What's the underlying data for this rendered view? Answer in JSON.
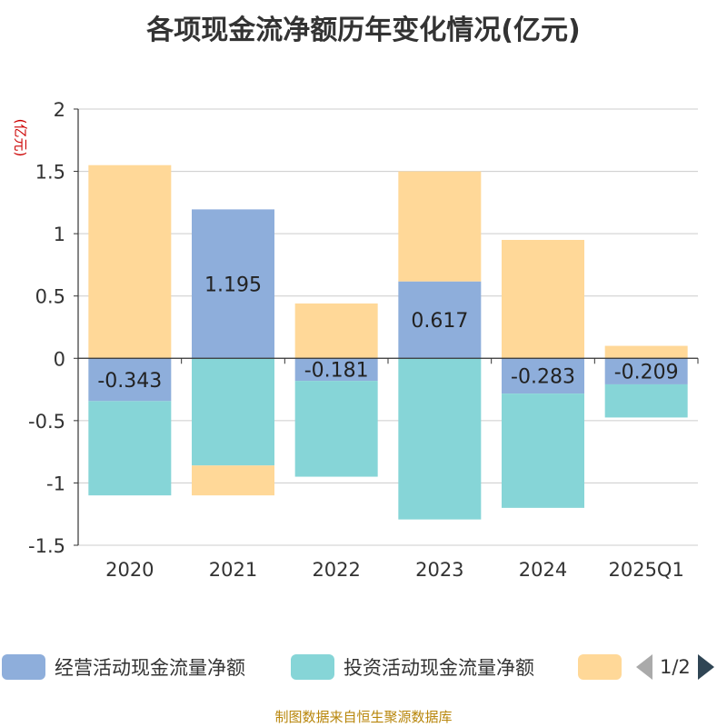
{
  "chart_data": {
    "type": "bar",
    "stacked": true,
    "title": "各项现金流净额历年变化情况(亿元)",
    "ylabel": "(亿元)",
    "xlabel": "",
    "categories": [
      "2020",
      "2021",
      "2022",
      "2023",
      "2024",
      "2025Q1"
    ],
    "ylim": [
      -1.5,
      2
    ],
    "yticks": [
      2,
      1.5,
      1,
      0.5,
      0,
      -0.5,
      -1,
      -1.5
    ],
    "grid": true,
    "series": [
      {
        "name": "经营活动现金流量净额",
        "color": "#8eaedb",
        "values": [
          -0.343,
          1.195,
          -0.181,
          0.617,
          -0.283,
          -0.209
        ],
        "data_labels": [
          "-0.343",
          "1.195",
          "-0.181",
          "0.617",
          "-0.283",
          "-0.209"
        ]
      },
      {
        "name": "投资活动现金流量净额",
        "color": "#86d5d7",
        "values": [
          -0.757,
          -0.86,
          -0.769,
          -1.293,
          -0.917,
          -0.266
        ]
      },
      {
        "name": "",
        "color": "#ffd898",
        "values": [
          1.55,
          -0.24,
          0.44,
          0.883,
          0.95,
          0.1
        ]
      }
    ]
  },
  "legend": {
    "items": [
      {
        "label": "经营活动现金流量净额",
        "color": "#8eaedb"
      },
      {
        "label": "投资活动现金流量净额",
        "color": "#86d5d7"
      },
      {
        "label": "",
        "color": "#ffd898"
      }
    ],
    "page": "1/2"
  },
  "source": "制图数据来自恒生聚源数据库"
}
